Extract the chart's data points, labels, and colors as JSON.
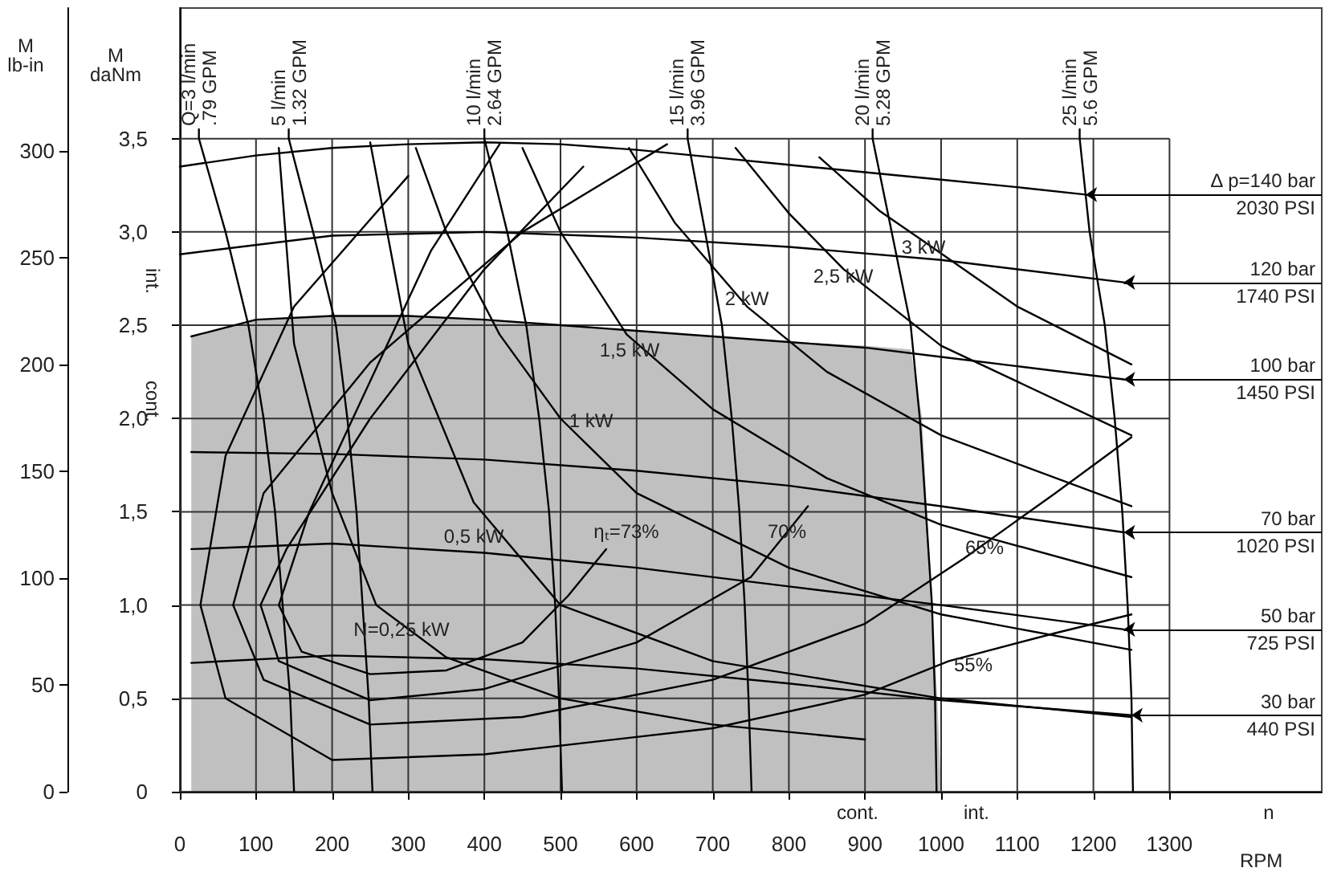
{
  "chart_data": {
    "type": "line",
    "xlabel": "RPM",
    "ylabel": "M\ndaNm",
    "y2label": "M\nlb-in",
    "xlim": [
      0,
      1500
    ],
    "xticks": [
      0,
      100,
      200,
      300,
      400,
      500,
      600,
      700,
      800,
      900,
      1000,
      1100,
      1200,
      1300
    ],
    "ylim": [
      0,
      4.2
    ],
    "yticks": [
      0,
      {
        "value": 0.5,
        "label": "0,5"
      },
      {
        "value": 1,
        "label": "1,0"
      },
      {
        "value": 1.5,
        "label": "1,5"
      },
      {
        "value": 2,
        "label": "2,0"
      },
      {
        "value": 2.5,
        "label": "2,5"
      },
      {
        "value": 3,
        "label": "3,0"
      },
      {
        "value": 3.5,
        "label": "3,5"
      }
    ],
    "y2lim": [
      0,
      367
    ],
    "y2ticks": [
      0,
      50,
      100,
      150,
      200,
      250,
      300
    ],
    "grid": true,
    "legend": false,
    "marker": "none",
    "line_style": "solid",
    "series": [
      {
        "type": "area",
        "color": "#c0c0c0",
        "x": [
          15,
          15,
          100,
          200,
          300,
          400,
          500,
          600,
          700,
          800,
          900,
          960,
          975,
          988,
          995,
          1000
        ],
        "values": [
          0,
          2.44,
          2.53,
          2.55,
          2.55,
          2.53,
          2.5,
          2.47,
          2.44,
          2.41,
          2.39,
          2.37,
          2.0,
          1.0,
          0.5,
          0
        ]
      },
      {
        "name": "∆ p=140 bar\n2030 PSI",
        "color": "#000000",
        "x": [
          0,
          100,
          200,
          300,
          400,
          500,
          600,
          700,
          800,
          900,
          1000,
          1100,
          1190
        ],
        "values": [
          3.35,
          3.41,
          3.45,
          3.47,
          3.48,
          3.47,
          3.44,
          3.4,
          3.36,
          3.32,
          3.28,
          3.24,
          3.2
        ]
      },
      {
        "name": "120 bar\n1740 PSI",
        "color": "#000000",
        "x": [
          0,
          200,
          400,
          600,
          800,
          1000,
          1240
        ],
        "values": [
          2.88,
          2.98,
          3.0,
          2.97,
          2.92,
          2.85,
          2.73
        ]
      },
      {
        "name": "100 bar\n1450 PSI",
        "color": "#000000",
        "x": [
          15,
          100,
          200,
          300,
          400,
          500,
          600,
          700,
          800,
          900,
          1000,
          1100,
          1240
        ],
        "values": [
          2.44,
          2.53,
          2.55,
          2.55,
          2.53,
          2.5,
          2.47,
          2.44,
          2.41,
          2.38,
          2.33,
          2.28,
          2.21
        ]
      },
      {
        "name": "70 bar\n1020 PSI",
        "color": "#000000",
        "x": [
          15,
          200,
          400,
          600,
          800,
          1000,
          1240
        ],
        "values": [
          1.82,
          1.81,
          1.78,
          1.72,
          1.64,
          1.53,
          1.39
        ]
      },
      {
        "name": "50 bar\n725 PSI",
        "color": "#000000",
        "x": [
          15,
          200,
          400,
          600,
          800,
          1000,
          1240
        ],
        "values": [
          1.3,
          1.33,
          1.28,
          1.2,
          1.1,
          1.0,
          0.87
        ]
      },
      {
        "name": "30 bar\n440 PSI",
        "color": "#000000",
        "x": [
          15,
          200,
          400,
          600,
          800,
          1000,
          1250
        ],
        "values": [
          0.69,
          0.73,
          0.71,
          0.66,
          0.58,
          0.49,
          0.41
        ]
      },
      {
        "name": "Q=3 l/min\n.79 GPM",
        "color": "#000000",
        "x": [
          25,
          25,
          60,
          90,
          110,
          125,
          135,
          145,
          150
        ],
        "values": [
          3.55,
          3.5,
          3.0,
          2.5,
          2.0,
          1.5,
          1.0,
          0.5,
          0
        ]
      },
      {
        "name": "5 l/min\n1.32 GPM",
        "color": "#000000",
        "x": [
          143,
          143,
          175,
          205,
          220,
          232,
          240,
          248,
          253
        ],
        "values": [
          3.55,
          3.5,
          3.0,
          2.5,
          2.0,
          1.5,
          1.0,
          0.5,
          0
        ]
      },
      {
        "name": "10 l/min\n2.64 GPM",
        "color": "#000000",
        "x": [
          400,
          400,
          430,
          455,
          472,
          485,
          493,
          498,
          502
        ],
        "values": [
          3.55,
          3.5,
          3.0,
          2.5,
          2.0,
          1.5,
          1.0,
          0.5,
          0
        ]
      },
      {
        "name": "15 l/min\n3.96 GPM",
        "color": "#000000",
        "x": [
          667,
          667,
          690,
          712,
          725,
          735,
          742,
          747,
          751
        ],
        "values": [
          3.55,
          3.5,
          3.0,
          2.5,
          2.0,
          1.5,
          1.0,
          0.5,
          0
        ]
      },
      {
        "name": "20 l/min\n5.28 GPM",
        "color": "#000000",
        "x": [
          910,
          910,
          935,
          960,
          972,
          980,
          988,
          992,
          994
        ],
        "values": [
          3.55,
          3.5,
          3.0,
          2.5,
          2.0,
          1.5,
          1.0,
          0.5,
          0
        ]
      },
      {
        "name": "25 l/min\n5.6 GPM",
        "color": "#000000",
        "x": [
          1182,
          1182,
          1195,
          1215,
          1228,
          1238,
          1245,
          1250,
          1252
        ],
        "values": [
          3.55,
          3.5,
          3.0,
          2.5,
          2.0,
          1.5,
          1.0,
          0.5,
          0
        ]
      },
      {
        "color": "#000000",
        "x": [
          130,
          150,
          200,
          258,
          350,
          500,
          700,
          900
        ],
        "values": [
          3.45,
          2.4,
          1.6,
          1.0,
          0.72,
          0.5,
          0.36,
          0.28
        ]
      },
      {
        "color": "#000000",
        "x": [
          250,
          300,
          386,
          500,
          700,
          1000,
          1250
        ],
        "values": [
          3.48,
          2.4,
          1.55,
          1.0,
          0.7,
          0.5,
          0.4
        ]
      },
      {
        "color": "#000000",
        "x": [
          310,
          350,
          420,
          500,
          600,
          800,
          1000,
          1250
        ],
        "values": [
          3.45,
          3.0,
          2.45,
          2.0,
          1.6,
          1.2,
          0.95,
          0.76
        ]
      },
      {
        "color": "#000000",
        "x": [
          450,
          500,
          587,
          700,
          850,
          1000,
          1250
        ],
        "values": [
          3.45,
          3.0,
          2.45,
          2.05,
          1.68,
          1.43,
          1.15
        ]
      },
      {
        "color": "#000000",
        "x": [
          590,
          650,
          745,
          850,
          1000,
          1250
        ],
        "values": [
          3.45,
          3.05,
          2.6,
          2.25,
          1.91,
          1.53
        ]
      },
      {
        "color": "#000000",
        "x": [
          730,
          800,
          872,
          1000,
          1250
        ],
        "values": [
          3.45,
          3.1,
          2.8,
          2.39,
          1.91
        ]
      },
      {
        "color": "#000000",
        "x": [
          840,
          920,
          977,
          1100,
          1250
        ],
        "values": [
          3.4,
          3.11,
          2.95,
          2.6,
          2.29
        ]
      },
      {
        "color": "#000000",
        "x": [
          420,
          330,
          250,
          170,
          130,
          160,
          250,
          350,
          450,
          510,
          560
        ],
        "values": [
          3.47,
          2.9,
          2.2,
          1.5,
          1.0,
          0.75,
          0.63,
          0.65,
          0.8,
          1.05,
          1.3
        ]
      },
      {
        "color": "#000000",
        "x": [
          530,
          400,
          250,
          140,
          106,
          130,
          250,
          400,
          600,
          750,
          825
        ],
        "values": [
          3.35,
          2.8,
          2.0,
          1.3,
          1.0,
          0.7,
          0.49,
          0.55,
          0.8,
          1.15,
          1.53
        ]
      },
      {
        "color": "#000000",
        "x": [
          640,
          450,
          250,
          110,
          70,
          110,
          250,
          450,
          700,
          900,
          1030,
          1150,
          1250
        ],
        "values": [
          3.47,
          3.0,
          2.3,
          1.6,
          1.0,
          0.6,
          0.36,
          0.4,
          0.6,
          0.9,
          1.25,
          1.6,
          1.9
        ]
      },
      {
        "color": "#000000",
        "x": [
          300,
          150,
          60,
          27,
          60,
          200,
          400,
          700,
          900,
          1010,
          1150,
          1250
        ],
        "values": [
          3.3,
          2.6,
          1.8,
          1.0,
          0.5,
          0.17,
          0.2,
          0.34,
          0.52,
          0.7,
          0.85,
          0.95
        ]
      }
    ],
    "annotations": [
      "N=0,25 kW",
      "0,5 kW",
      "1 kW",
      "1,5 kW",
      "2 kW",
      "2,5 kW",
      "3 kW",
      "ηₜ=73%",
      "70%",
      "65%",
      "55%",
      "n",
      "cont.",
      "int.",
      "int.",
      "cont."
    ]
  }
}
